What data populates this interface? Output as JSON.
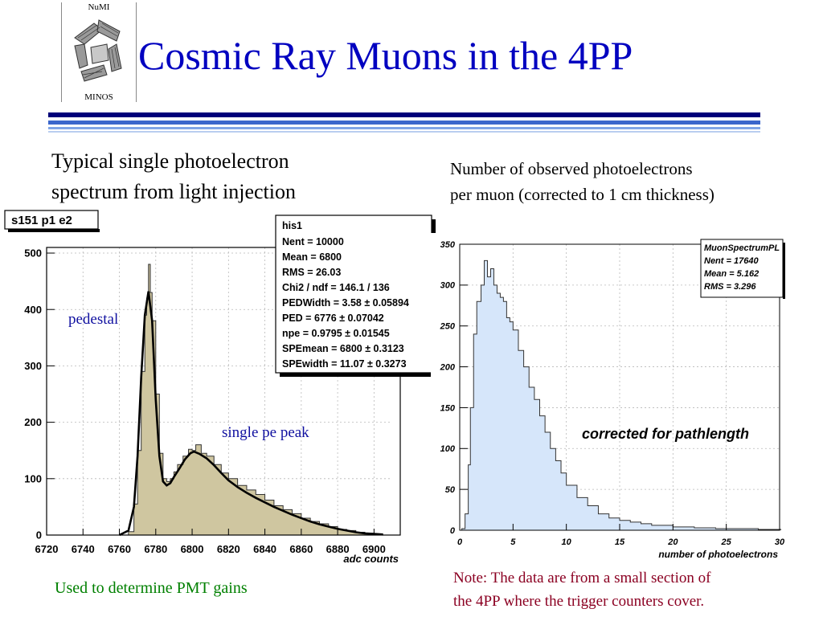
{
  "logo": {
    "top_text": "NuMI",
    "bottom_text": "MINOS"
  },
  "slide": {
    "title": "Cosmic Ray Muons in the 4PP",
    "caption_left": [
      "Typical single photoelectron",
      "spectrum from light injection"
    ],
    "caption_right": [
      "Number of observed photoelectrons",
      "per muon (corrected to 1 cm thickness)"
    ],
    "note_left": "Used to determine PMT gains",
    "note_right": [
      "Note: The data are from a small section of",
      "the 4PP where the trigger counters cover."
    ]
  },
  "colors": {
    "title": "#0000c0",
    "rule": "#00007a",
    "fill_left": "#cfc6a0",
    "fill_right": "#d6e6fa",
    "note_right": "#8b0022",
    "note_left": "#008000",
    "annotation": "#1010a0"
  },
  "chart_data": [
    {
      "type": "area",
      "panel_label": "s151 p1 e2",
      "xlabel": "adc counts",
      "ylabel": "",
      "xlim": [
        6720,
        6910
      ],
      "ylim": [
        0,
        510
      ],
      "xticks": [
        6720,
        6740,
        6760,
        6780,
        6800,
        6820,
        6840,
        6860,
        6880,
        6900
      ],
      "yticks": [
        0,
        100,
        200,
        300,
        400,
        500
      ],
      "grid": true,
      "annotations": [
        "pedestal",
        "single pe peak"
      ],
      "stats_box": {
        "title": "his1",
        "rows": [
          "Nent = 10000",
          "Mean  =   6800",
          "RMS   =  26.03",
          "Chi2 / ndf = 146.1 / 136",
          "PEDWidth =  3.58 ± 0.05894",
          "PED      =  6776 ± 0.07042",
          "npe      = 0.9795 ± 0.01545",
          "SPEmean  =  6800 ± 0.3123",
          "SPEwidth = 11.07 ± 0.3273"
        ]
      },
      "x": [
        6760,
        6765,
        6768,
        6770,
        6772,
        6774,
        6775,
        6776,
        6777,
        6778,
        6780,
        6782,
        6784,
        6786,
        6788,
        6790,
        6792,
        6795,
        6798,
        6800,
        6802,
        6805,
        6808,
        6812,
        6816,
        6820,
        6825,
        6830,
        6835,
        6840,
        6845,
        6850,
        6855,
        6860,
        6865,
        6870,
        6875,
        6880,
        6885,
        6890,
        6895,
        6900
      ],
      "values": [
        0,
        6,
        55,
        150,
        290,
        390,
        420,
        480,
        430,
        380,
        250,
        145,
        100,
        95,
        100,
        112,
        125,
        140,
        152,
        150,
        160,
        145,
        140,
        125,
        110,
        100,
        88,
        80,
        72,
        62,
        52,
        45,
        38,
        30,
        24,
        20,
        15,
        10,
        8,
        5,
        3,
        2
      ],
      "fit": [
        [
          6760,
          0
        ],
        [
          6765,
          8
        ],
        [
          6768,
          50
        ],
        [
          6770,
          140
        ],
        [
          6772,
          280
        ],
        [
          6774,
          390
        ],
        [
          6776,
          432
        ],
        [
          6778,
          380
        ],
        [
          6780,
          240
        ],
        [
          6782,
          140
        ],
        [
          6784,
          95
        ],
        [
          6786,
          88
        ],
        [
          6788,
          92
        ],
        [
          6790,
          103
        ],
        [
          6793,
          118
        ],
        [
          6796,
          134
        ],
        [
          6799,
          145
        ],
        [
          6801,
          148
        ],
        [
          6804,
          144
        ],
        [
          6808,
          136
        ],
        [
          6812,
          124
        ],
        [
          6816,
          110
        ],
        [
          6820,
          97
        ],
        [
          6825,
          85
        ],
        [
          6830,
          75
        ],
        [
          6835,
          66
        ],
        [
          6840,
          58
        ],
        [
          6845,
          50
        ],
        [
          6850,
          43
        ],
        [
          6855,
          36
        ],
        [
          6860,
          30
        ],
        [
          6865,
          24
        ],
        [
          6870,
          19
        ],
        [
          6875,
          15
        ],
        [
          6880,
          11
        ],
        [
          6885,
          8
        ],
        [
          6890,
          5
        ],
        [
          6895,
          3
        ],
        [
          6900,
          2
        ],
        [
          6905,
          1
        ]
      ]
    },
    {
      "type": "area",
      "xlabel": "number of photoelectrons",
      "ylabel": "",
      "xlim": [
        0,
        30
      ],
      "ylim": [
        0,
        350
      ],
      "xticks": [
        0,
        5,
        10,
        15,
        20,
        25,
        30
      ],
      "yticks": [
        0,
        50,
        100,
        150,
        200,
        250,
        300,
        350
      ],
      "grid": true,
      "annotations": [
        "corrected for pathlength"
      ],
      "stats_box": {
        "title": "MuonSpectrumPL",
        "rows": [
          "Nent = 17640",
          "Mean = 5.162",
          "RMS  = 3.296"
        ]
      },
      "x": [
        0.2,
        0.5,
        0.8,
        1.0,
        1.3,
        1.6,
        2.0,
        2.3,
        2.6,
        2.9,
        3.2,
        3.5,
        3.8,
        4.1,
        4.4,
        4.7,
        5.0,
        5.5,
        6.0,
        6.5,
        7.0,
        7.5,
        8.0,
        8.5,
        9.0,
        9.5,
        10.0,
        11.0,
        12.0,
        13.0,
        14.0,
        15.0,
        16.0,
        17.0,
        18.0,
        20.0,
        22.0,
        24.0,
        26.0,
        28.0,
        30.0
      ],
      "values": [
        2,
        20,
        80,
        150,
        240,
        280,
        300,
        330,
        310,
        320,
        300,
        290,
        285,
        280,
        260,
        255,
        245,
        220,
        200,
        175,
        160,
        140,
        120,
        100,
        85,
        70,
        55,
        40,
        30,
        20,
        15,
        12,
        10,
        8,
        6,
        4,
        3,
        2,
        2,
        1,
        1
      ]
    }
  ]
}
